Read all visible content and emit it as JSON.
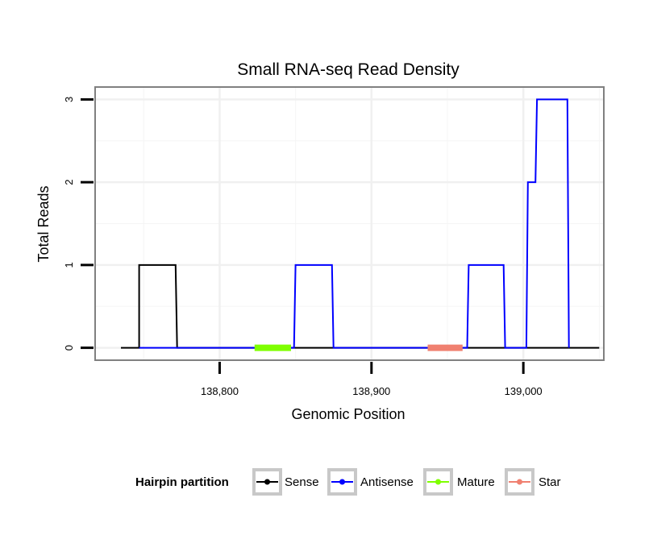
{
  "chart_data": {
    "type": "line",
    "title": "Small RNA-seq Read Density",
    "xlabel": "Genomic Position",
    "ylabel": "Total Reads",
    "xlim": [
      138718,
      139053
    ],
    "ylim": [
      -0.15,
      3.15
    ],
    "x_ticks": [
      {
        "value": 138800,
        "label": "138,800"
      },
      {
        "value": 138900,
        "label": "138,900"
      },
      {
        "value": 139000,
        "label": "139,000"
      }
    ],
    "y_ticks": [
      {
        "value": 0,
        "label": "0"
      },
      {
        "value": 1,
        "label": "1"
      },
      {
        "value": 2,
        "label": "2"
      },
      {
        "value": 3,
        "label": "3"
      }
    ],
    "grid": true,
    "legend_position": "bottom",
    "legend_title": "Hairpin partition",
    "series": [
      {
        "name": "Sense",
        "color": "#000000",
        "points": [
          [
            138735,
            0
          ],
          [
            138747,
            0
          ],
          [
            138747,
            1
          ],
          [
            138771,
            1
          ],
          [
            138772,
            0
          ],
          [
            139050,
            0
          ]
        ]
      },
      {
        "name": "Antisense",
        "color": "#0000ff",
        "points": [
          [
            138747,
            0
          ],
          [
            138772,
            0
          ],
          [
            138773,
            0
          ],
          [
            138849,
            0
          ],
          [
            138850,
            1
          ],
          [
            138874,
            1
          ],
          [
            138875,
            0
          ],
          [
            138963,
            0
          ],
          [
            138964,
            1
          ],
          [
            138987,
            1
          ],
          [
            138988,
            0
          ],
          [
            139002,
            0
          ],
          [
            139003,
            2
          ],
          [
            139008,
            2
          ],
          [
            139009,
            3
          ],
          [
            139029,
            3
          ],
          [
            139030,
            0
          ]
        ]
      },
      {
        "name": "Mature",
        "color": "#7fff00",
        "points": [
          [
            138823,
            0
          ],
          [
            138847,
            0
          ]
        ]
      },
      {
        "name": "Star",
        "color": "#f08070",
        "points": [
          [
            138937,
            0
          ],
          [
            138960,
            0
          ]
        ]
      }
    ]
  }
}
